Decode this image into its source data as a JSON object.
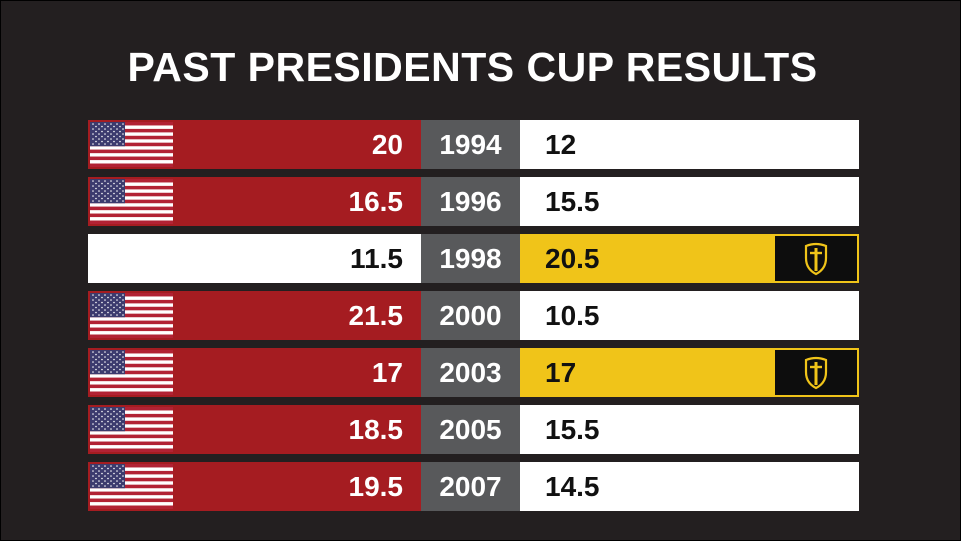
{
  "title": "PAST PRESIDENTS CUP RESULTS",
  "colors": {
    "background": "#231f20",
    "usa_red": "#a51c21",
    "year_gray": "#58595b",
    "international_gold": "#f0c419",
    "emblem_black": "#0d0d0d"
  },
  "results": [
    {
      "year": "1994",
      "usa_score": "20",
      "international_score": "12",
      "winner": "usa",
      "left_icon": "usa-flag-icon",
      "right_icon": ""
    },
    {
      "year": "1996",
      "usa_score": "16.5",
      "international_score": "15.5",
      "winner": "usa",
      "left_icon": "usa-flag-icon",
      "right_icon": ""
    },
    {
      "year": "1998",
      "usa_score": "11.5",
      "international_score": "20.5",
      "winner": "international",
      "left_icon": "",
      "right_icon": "international-shield-icon"
    },
    {
      "year": "2000",
      "usa_score": "21.5",
      "international_score": "10.5",
      "winner": "usa",
      "left_icon": "usa-flag-icon",
      "right_icon": ""
    },
    {
      "year": "2003",
      "usa_score": "17",
      "international_score": "17",
      "winner": "tie",
      "left_icon": "usa-flag-icon",
      "right_icon": "international-shield-icon"
    },
    {
      "year": "2005",
      "usa_score": "18.5",
      "international_score": "15.5",
      "winner": "usa",
      "left_icon": "usa-flag-icon",
      "right_icon": ""
    },
    {
      "year": "2007",
      "usa_score": "19.5",
      "international_score": "14.5",
      "winner": "usa",
      "left_icon": "usa-flag-icon",
      "right_icon": ""
    }
  ]
}
